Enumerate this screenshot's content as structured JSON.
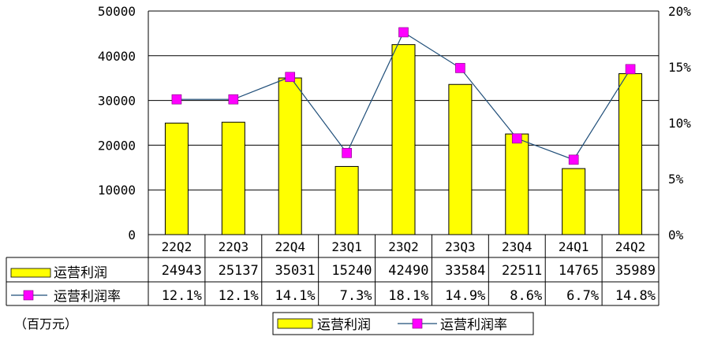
{
  "chart_data": {
    "type": "bar+line",
    "categories": [
      "22Q2",
      "22Q3",
      "22Q4",
      "23Q1",
      "23Q2",
      "23Q3",
      "23Q4",
      "24Q1",
      "24Q2"
    ],
    "series": [
      {
        "name": "运营利润",
        "type": "bar",
        "axis": "left",
        "color": "#FFFF00",
        "values": [
          24943,
          25137,
          35031,
          15240,
          42490,
          33584,
          22511,
          14765,
          35989
        ],
        "labels": [
          "24943",
          "25137",
          "35031",
          "15240",
          "42490",
          "33584",
          "22511",
          "14765",
          "35989"
        ]
      },
      {
        "name": "运营利润率",
        "type": "line",
        "axis": "right",
        "color": "#FF00FF",
        "line_color": "#1F4E79",
        "values": [
          12.1,
          12.1,
          14.1,
          7.3,
          18.1,
          14.9,
          8.6,
          6.7,
          14.8
        ],
        "labels": [
          "12.1%",
          "12.1%",
          "14.1%",
          "7.3%",
          "18.1%",
          "14.9%",
          "8.6%",
          "6.7%",
          "14.8%"
        ]
      }
    ],
    "y_left": {
      "range": [
        0,
        50000
      ],
      "ticks": [
        "0",
        "10000",
        "20000",
        "30000",
        "40000",
        "50000"
      ]
    },
    "y_right": {
      "range": [
        0,
        20
      ],
      "ticks": [
        "0%",
        "5%",
        "10%",
        "15%",
        "20%"
      ]
    },
    "grid": true,
    "data_table": true,
    "legend_position": "bottom"
  },
  "unit_label": "（百万元）"
}
